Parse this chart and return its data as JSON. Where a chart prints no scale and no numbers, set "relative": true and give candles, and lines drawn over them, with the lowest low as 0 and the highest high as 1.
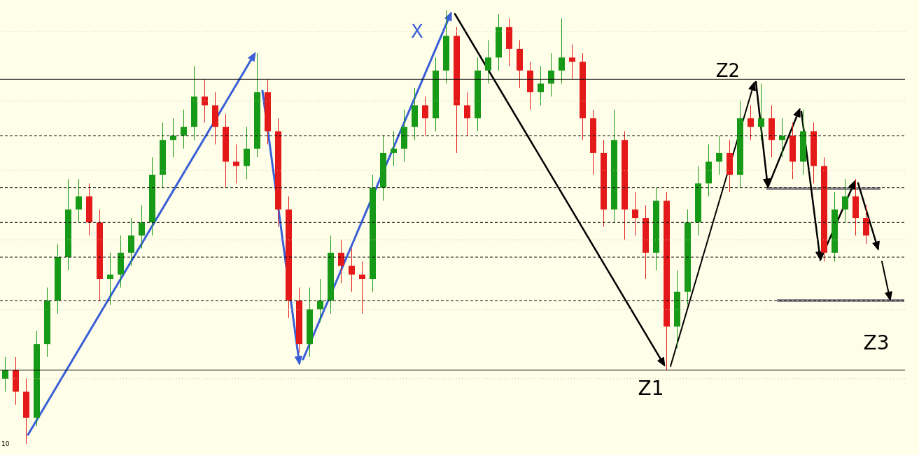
{
  "chart_data": {
    "type": "candlestick",
    "relative": true,
    "categories": [
      null,
      null,
      null,
      null,
      null,
      null,
      null,
      null,
      null,
      null,
      null,
      null,
      null,
      null,
      null,
      null,
      null,
      null,
      null,
      null,
      null,
      null,
      null,
      null,
      null,
      null,
      null,
      null,
      null,
      null,
      null,
      null,
      null,
      null,
      null,
      null,
      null,
      null,
      null,
      null,
      null,
      null,
      null,
      null,
      null,
      null,
      null,
      null,
      null,
      null,
      null,
      null,
      null,
      null,
      null,
      null,
      null,
      null,
      null,
      null,
      null,
      null,
      null,
      null,
      null,
      null,
      null,
      null,
      null,
      null,
      null,
      null,
      null,
      null,
      null,
      null,
      null,
      null,
      null,
      null,
      null,
      null,
      null
    ],
    "ohlc": [
      [
        0.15,
        0.2,
        0.12,
        0.17
      ],
      [
        0.17,
        0.2,
        0.09,
        0.12
      ],
      [
        0.12,
        0.15,
        0.0,
        0.06
      ],
      [
        0.06,
        0.26,
        0.04,
        0.23
      ],
      [
        0.23,
        0.36,
        0.2,
        0.33
      ],
      [
        0.33,
        0.46,
        0.3,
        0.43
      ],
      [
        0.43,
        0.61,
        0.4,
        0.54
      ],
      [
        0.54,
        0.61,
        0.51,
        0.57
      ],
      [
        0.57,
        0.6,
        0.48,
        0.51
      ],
      [
        0.51,
        0.54,
        0.33,
        0.38
      ],
      [
        0.38,
        0.44,
        0.32,
        0.39
      ],
      [
        0.39,
        0.48,
        0.36,
        0.44
      ],
      [
        0.44,
        0.52,
        0.41,
        0.48
      ],
      [
        0.48,
        0.55,
        0.45,
        0.51
      ],
      [
        0.51,
        0.66,
        0.48,
        0.62
      ],
      [
        0.62,
        0.74,
        0.59,
        0.7
      ],
      [
        0.7,
        0.75,
        0.66,
        0.71
      ],
      [
        0.71,
        0.77,
        0.68,
        0.73
      ],
      [
        0.73,
        0.87,
        0.7,
        0.8
      ],
      [
        0.8,
        0.84,
        0.74,
        0.78
      ],
      [
        0.78,
        0.81,
        0.69,
        0.73
      ],
      [
        0.73,
        0.76,
        0.59,
        0.65
      ],
      [
        0.65,
        0.69,
        0.6,
        0.64
      ],
      [
        0.64,
        0.73,
        0.61,
        0.68
      ],
      [
        0.68,
        0.9,
        0.66,
        0.81
      ],
      [
        0.81,
        0.84,
        0.69,
        0.72
      ],
      [
        0.72,
        0.75,
        0.5,
        0.54
      ],
      [
        0.54,
        0.57,
        0.29,
        0.33
      ],
      [
        0.33,
        0.36,
        0.21,
        0.23
      ],
      [
        0.23,
        0.36,
        0.2,
        0.31
      ],
      [
        0.31,
        0.38,
        0.28,
        0.33
      ],
      [
        0.33,
        0.48,
        0.3,
        0.44
      ],
      [
        0.44,
        0.47,
        0.37,
        0.41
      ],
      [
        0.41,
        0.45,
        0.35,
        0.39
      ],
      [
        0.39,
        0.42,
        0.3,
        0.38
      ],
      [
        0.38,
        0.62,
        0.35,
        0.59
      ],
      [
        0.59,
        0.71,
        0.56,
        0.67
      ],
      [
        0.67,
        0.72,
        0.64,
        0.68
      ],
      [
        0.68,
        0.77,
        0.65,
        0.73
      ],
      [
        0.73,
        0.82,
        0.7,
        0.78
      ],
      [
        0.78,
        0.8,
        0.71,
        0.75
      ],
      [
        0.75,
        0.89,
        0.72,
        0.86
      ],
      [
        0.86,
        1.0,
        0.83,
        0.94
      ],
      [
        0.94,
        0.96,
        0.67,
        0.78
      ],
      [
        0.78,
        0.81,
        0.71,
        0.75
      ],
      [
        0.75,
        0.89,
        0.72,
        0.86
      ],
      [
        0.86,
        0.93,
        0.83,
        0.89
      ],
      [
        0.89,
        0.99,
        0.86,
        0.96
      ],
      [
        0.96,
        0.98,
        0.87,
        0.91
      ],
      [
        0.91,
        0.93,
        0.82,
        0.86
      ],
      [
        0.86,
        0.88,
        0.77,
        0.81
      ],
      [
        0.81,
        0.87,
        0.78,
        0.83
      ],
      [
        0.83,
        0.9,
        0.8,
        0.86
      ],
      [
        0.86,
        0.98,
        0.83,
        0.89
      ],
      [
        0.89,
        0.92,
        0.84,
        0.88
      ],
      [
        0.88,
        0.9,
        0.7,
        0.75
      ],
      [
        0.75,
        0.77,
        0.62,
        0.67
      ],
      [
        0.67,
        0.7,
        0.5,
        0.54
      ],
      [
        0.54,
        0.77,
        0.51,
        0.7
      ],
      [
        0.7,
        0.72,
        0.47,
        0.54
      ],
      [
        0.54,
        0.58,
        0.48,
        0.52
      ],
      [
        0.52,
        0.55,
        0.38,
        0.44
      ],
      [
        0.44,
        0.59,
        0.4,
        0.56
      ],
      [
        0.56,
        0.58,
        0.17,
        0.27
      ],
      [
        0.27,
        0.4,
        0.22,
        0.35
      ],
      [
        0.35,
        0.54,
        0.32,
        0.51
      ],
      [
        0.51,
        0.64,
        0.48,
        0.6
      ],
      [
        0.6,
        0.69,
        0.57,
        0.65
      ],
      [
        0.65,
        0.71,
        0.62,
        0.67
      ],
      [
        0.67,
        0.7,
        0.58,
        0.62
      ],
      [
        0.62,
        0.79,
        0.59,
        0.75
      ],
      [
        0.75,
        0.78,
        0.7,
        0.73
      ],
      [
        0.73,
        0.83,
        0.7,
        0.75
      ],
      [
        0.75,
        0.78,
        0.66,
        0.7
      ],
      [
        0.7,
        0.75,
        0.66,
        0.71
      ],
      [
        0.71,
        0.74,
        0.61,
        0.65
      ],
      [
        0.65,
        0.77,
        0.62,
        0.72
      ],
      [
        0.72,
        0.74,
        0.6,
        0.64
      ],
      [
        0.64,
        0.66,
        0.42,
        0.44
      ],
      [
        0.44,
        0.58,
        0.42,
        0.54
      ],
      [
        0.54,
        0.61,
        0.51,
        0.57
      ],
      [
        0.57,
        0.61,
        0.48,
        0.52
      ],
      [
        0.52,
        0.55,
        0.46,
        0.48
      ]
    ],
    "ref_lines": [
      {
        "axis": "y",
        "value": 0.84,
        "color": "#000000",
        "line_style": "solid"
      },
      {
        "axis": "y",
        "value": 0.17,
        "color": "#000000",
        "line_style": "solid"
      },
      {
        "axis": "y",
        "value": 0.71,
        "color": "#000000",
        "line_style": "dashed"
      },
      {
        "axis": "y",
        "value": 0.59,
        "color": "#000000",
        "line_style": "dashed"
      },
      {
        "axis": "y",
        "value": 0.51,
        "color": "#000000",
        "line_style": "dashed"
      },
      {
        "axis": "y",
        "value": 0.43,
        "color": "#000000",
        "line_style": "dashed"
      },
      {
        "axis": "y",
        "value": 0.33,
        "color": "#000000",
        "line_style": "dashed"
      },
      {
        "axis": "y",
        "value": 0.95,
        "color": "#c8c8a8",
        "line_style": "dotted"
      },
      {
        "axis": "y",
        "value": 0.79,
        "color": "#c8c8a8",
        "line_style": "dotted"
      },
      {
        "axis": "y",
        "value": 0.63,
        "color": "#c8c8a8",
        "line_style": "dotted"
      },
      {
        "axis": "y",
        "value": 0.47,
        "color": "#c8c8a8",
        "line_style": "dotted"
      },
      {
        "axis": "y",
        "value": 0.31,
        "color": "#c8c8a8",
        "line_style": "dotted"
      },
      {
        "axis": "y",
        "value": 0.15,
        "color": "#c8c8a8",
        "line_style": "dotted"
      }
    ],
    "annotations": [
      "X",
      "Z1",
      "Z2",
      "Z3",
      "10"
    ]
  }
}
